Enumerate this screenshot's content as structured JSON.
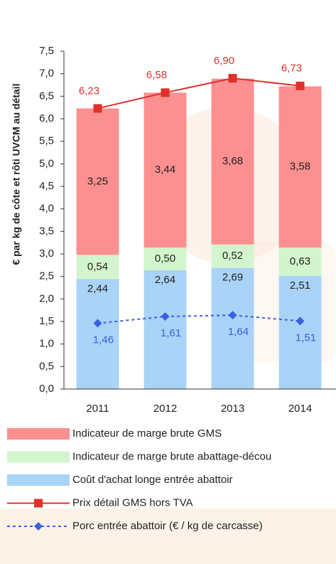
{
  "chart_data": {
    "type": "bar",
    "stacked": true,
    "y_label": "€ par kg de côte et rôti UVCM au détail",
    "categories": [
      "2011",
      "2012",
      "2013",
      "2014"
    ],
    "ylim": [
      0,
      7.5
    ],
    "yticks": [
      {
        "value": 0,
        "label": "0,0"
      },
      {
        "value": 0.5,
        "label": "0,5"
      },
      {
        "value": 1,
        "label": "1,0"
      },
      {
        "value": 1.5,
        "label": "1,5"
      },
      {
        "value": 2,
        "label": "2,0"
      },
      {
        "value": 2.5,
        "label": "2,5"
      },
      {
        "value": 3,
        "label": "3,0"
      },
      {
        "value": 3.5,
        "label": "3,5"
      },
      {
        "value": 4,
        "label": "4,0"
      },
      {
        "value": 4.5,
        "label": "4,5"
      },
      {
        "value": 5,
        "label": "5,0"
      },
      {
        "value": 5.5,
        "label": "5,5"
      },
      {
        "value": 6,
        "label": "6,0"
      },
      {
        "value": 6.5,
        "label": "6,5"
      },
      {
        "value": 7,
        "label": "7,0"
      },
      {
        "value": 7.5,
        "label": "7,5"
      }
    ],
    "series": [
      {
        "name": "Coût d'achat longe entrée abattoir",
        "type": "bar",
        "color": "#a9d3f7",
        "values": [
          2.44,
          2.64,
          2.69,
          2.51
        ],
        "value_labels": [
          "2,44",
          "2,64",
          "2,69",
          "2,51"
        ]
      },
      {
        "name": "Indicateur de marge brute abattage-décou",
        "type": "bar",
        "color": "#d3f5cd",
        "values": [
          0.54,
          0.5,
          0.52,
          0.63
        ],
        "value_labels": [
          "0,54",
          "0,50",
          "0,52",
          "0,63"
        ]
      },
      {
        "name": "Indicateur de marge brute GMS",
        "type": "bar",
        "color": "#fc8f8f",
        "values": [
          3.25,
          3.44,
          3.68,
          3.58
        ],
        "value_labels": [
          "3,25",
          "3,44",
          "3,68",
          "3,58"
        ]
      },
      {
        "name": "Prix détail GMS hors TVA",
        "type": "line",
        "color": "#e0302a",
        "values": [
          6.23,
          6.58,
          6.9,
          6.73
        ],
        "value_labels": [
          "6,23",
          "6,58",
          "6,90",
          "6,73"
        ]
      },
      {
        "name": "Porc entrée abattoir (€ / kg de carcasse)",
        "type": "line",
        "dashed": true,
        "color": "#3b5fe0",
        "values": [
          1.46,
          1.61,
          1.64,
          1.51
        ],
        "value_labels": [
          "1,46",
          "1,61",
          "1,64",
          "1,51"
        ]
      }
    ],
    "legend_order": [
      2,
      1,
      0,
      3,
      4
    ]
  }
}
